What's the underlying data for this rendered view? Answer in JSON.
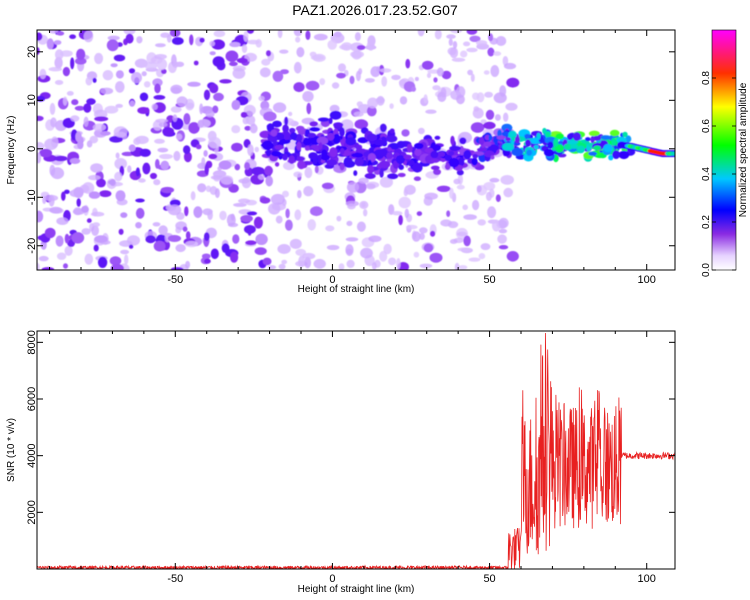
{
  "title": "PAZ1.2026.017.23.52.G07",
  "chart_data": [
    {
      "type": "heatmap",
      "xlabel": "Height of straight line (km)",
      "ylabel": "Frequency (Hz)",
      "xlim": [
        -94,
        109
      ],
      "ylim": [
        -25,
        24.5
      ],
      "xticks": [
        -50,
        0,
        50,
        100
      ],
      "yticks": [
        -20,
        -10,
        0,
        10,
        20
      ],
      "colorbar": {
        "label": "Normalized spectral amplitude",
        "range": [
          0,
          1
        ],
        "ticks": [
          0.0,
          0.2,
          0.4,
          0.6,
          0.8
        ],
        "colormap": [
          "#e6d2ff",
          "#7000ff",
          "#0000ff",
          "#00c8ff",
          "#00ff00",
          "#ffff00",
          "#ff0000",
          "#ff00ff"
        ]
      },
      "ridge": [
        {
          "height": -20,
          "freq": 1.0
        },
        {
          "height": 0,
          "freq": 0.5
        },
        {
          "height": 20,
          "freq": -1.0
        },
        {
          "height": 40,
          "freq": -1.5
        },
        {
          "height": 55,
          "freq": 1.5
        },
        {
          "height": 75,
          "freq": 0.5
        },
        {
          "height": 90,
          "freq": 1.0
        },
        {
          "height": 95,
          "freq": 0.5
        },
        {
          "height": 105,
          "freq": -1.0
        }
      ]
    },
    {
      "type": "line",
      "xlabel": "Height of straight line (km)",
      "ylabel": "SNR (10 * v/v)",
      "xlim": [
        -94,
        109
      ],
      "ylim": [
        0,
        8400
      ],
      "xticks": [
        -50,
        0,
        50,
        100
      ],
      "yticks": [
        2000,
        4000,
        6000,
        8000
      ],
      "series": [
        {
          "name": "SNR",
          "color": "#e82020",
          "segments": [
            {
              "from": -94,
              "to": 56,
              "level": 50,
              "noise": 60
            },
            {
              "from": 56,
              "to": 60,
              "level": 700,
              "noise": 800
            },
            {
              "from": 60,
              "to": 66,
              "level": 3000,
              "noise": 2600
            },
            {
              "from": 66,
              "to": 70,
              "level": 4200,
              "noise": 3600
            },
            {
              "from": 70,
              "to": 92,
              "level": 3600,
              "noise": 2200
            },
            {
              "from": 92,
              "to": 109,
              "level": 4000,
              "noise": 120
            }
          ]
        }
      ]
    }
  ]
}
